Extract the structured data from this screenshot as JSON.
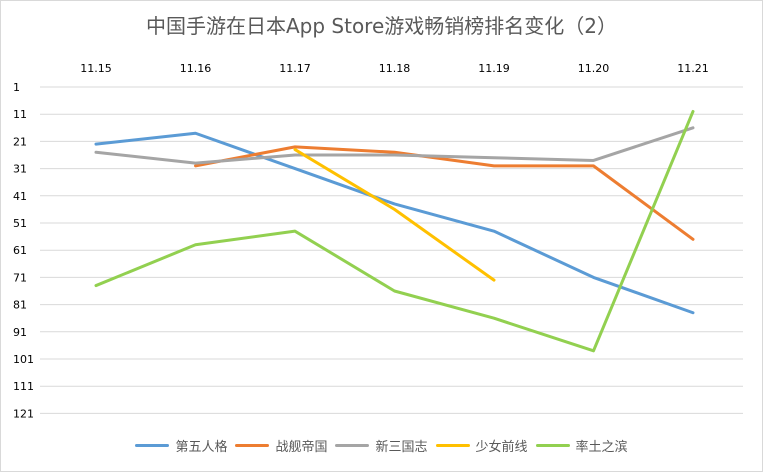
{
  "chart_data": {
    "type": "line",
    "title": "中国手游在日本App Store游戏畅销榜排名变化（2）",
    "categories": [
      "11.15",
      "11.16",
      "11.17",
      "11.18",
      "11.19",
      "11.20",
      "11.21"
    ],
    "y_ticks": [
      1,
      11,
      21,
      31,
      41,
      51,
      61,
      71,
      81,
      91,
      101,
      111,
      121
    ],
    "ylim": [
      1,
      121
    ],
    "y_inverted": true,
    "grid": true,
    "legend_position": "bottom",
    "series": [
      {
        "name": "第五人格",
        "color": "#5b9bd5",
        "values": [
          22,
          18,
          31,
          44,
          54,
          71,
          84
        ]
      },
      {
        "name": "战舰帝国",
        "color": "#ed7d31",
        "values": [
          null,
          30,
          23,
          25,
          30,
          30,
          57
        ]
      },
      {
        "name": "新三国志",
        "color": "#a5a5a5",
        "values": [
          25,
          29,
          26,
          26,
          27,
          28,
          16
        ]
      },
      {
        "name": "少女前线",
        "color": "#ffc000",
        "values": [
          null,
          null,
          24,
          46,
          72,
          null,
          null
        ]
      },
      {
        "name": "率土之滨",
        "color": "#92d050",
        "values": [
          74,
          59,
          54,
          76,
          86,
          98,
          10
        ]
      }
    ]
  }
}
